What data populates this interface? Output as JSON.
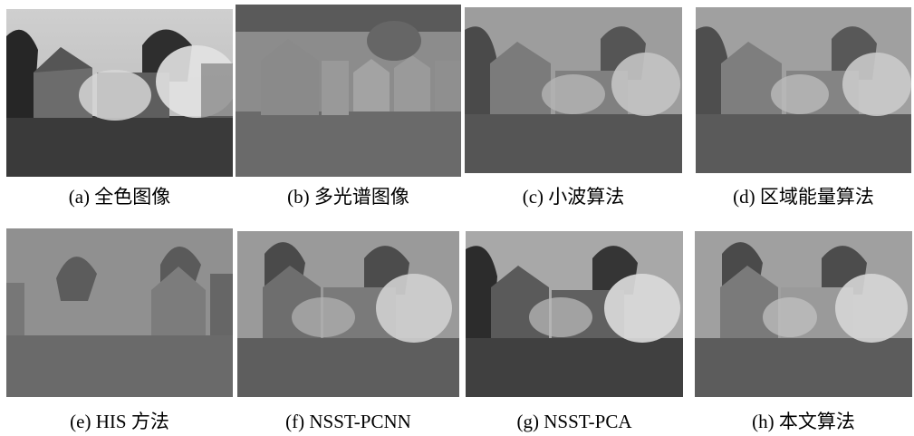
{
  "figure": {
    "panels": [
      {
        "id": "a",
        "caption": "(a)  全色图像"
      },
      {
        "id": "b",
        "caption": "(b)  多光谱图像"
      },
      {
        "id": "c",
        "caption": "(c)  小波算法"
      },
      {
        "id": "d",
        "caption": "(d)  区域能量算法"
      },
      {
        "id": "e",
        "caption": "(e) HIS 方法"
      },
      {
        "id": "f",
        "caption": "(f) NSST-PCNN"
      },
      {
        "id": "g",
        "caption": "(g) NSST-PCA"
      },
      {
        "id": "h",
        "caption": "(h)  本文算法"
      }
    ]
  }
}
